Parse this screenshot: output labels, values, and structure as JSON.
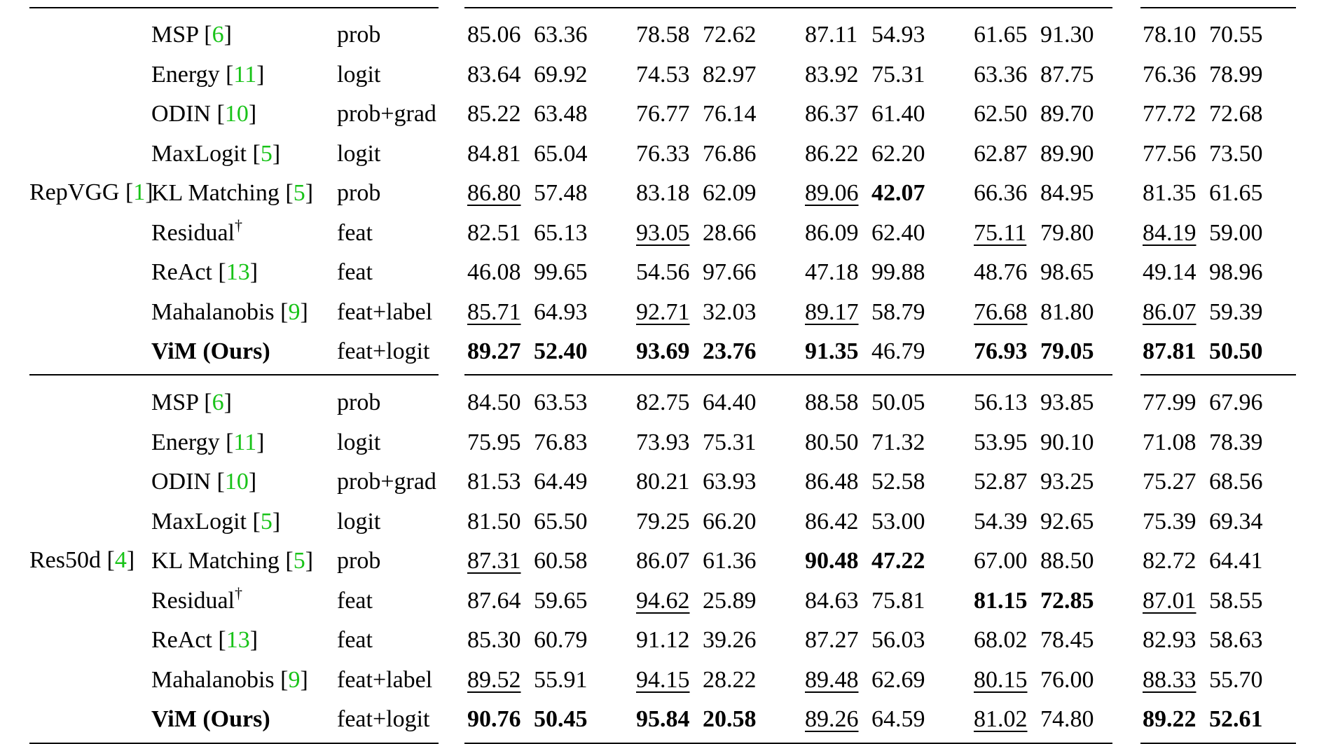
{
  "groups": [
    {
      "model": "RepVGG",
      "cite": "1",
      "rows": [
        {
          "method": "MSP",
          "cite": "6",
          "input": "prob",
          "cells": [
            [
              "85.06",
              ""
            ],
            [
              "63.36",
              ""
            ],
            [
              "78.58",
              ""
            ],
            [
              "72.62",
              ""
            ],
            [
              "87.11",
              ""
            ],
            [
              "54.93",
              ""
            ],
            [
              "61.65",
              ""
            ],
            [
              "91.30",
              ""
            ],
            [
              "78.10",
              ""
            ],
            [
              "70.55",
              ""
            ]
          ]
        },
        {
          "method": "Energy",
          "cite": "11",
          "input": "logit",
          "cells": [
            [
              "83.64",
              ""
            ],
            [
              "69.92",
              ""
            ],
            [
              "74.53",
              ""
            ],
            [
              "82.97",
              ""
            ],
            [
              "83.92",
              ""
            ],
            [
              "75.31",
              ""
            ],
            [
              "63.36",
              ""
            ],
            [
              "87.75",
              ""
            ],
            [
              "76.36",
              ""
            ],
            [
              "78.99",
              ""
            ]
          ]
        },
        {
          "method": "ODIN",
          "cite": "10",
          "input": "prob+grad",
          "cells": [
            [
              "85.22",
              ""
            ],
            [
              "63.48",
              ""
            ],
            [
              "76.77",
              ""
            ],
            [
              "76.14",
              ""
            ],
            [
              "86.37",
              ""
            ],
            [
              "61.40",
              ""
            ],
            [
              "62.50",
              ""
            ],
            [
              "89.70",
              ""
            ],
            [
              "77.72",
              ""
            ],
            [
              "72.68",
              ""
            ]
          ]
        },
        {
          "method": "MaxLogit",
          "cite": "5",
          "input": "logit",
          "cells": [
            [
              "84.81",
              ""
            ],
            [
              "65.04",
              ""
            ],
            [
              "76.33",
              ""
            ],
            [
              "76.86",
              ""
            ],
            [
              "86.22",
              ""
            ],
            [
              "62.20",
              ""
            ],
            [
              "62.87",
              ""
            ],
            [
              "89.90",
              ""
            ],
            [
              "77.56",
              ""
            ],
            [
              "73.50",
              ""
            ]
          ]
        },
        {
          "method": "KL Matching",
          "cite": "5",
          "input": "prob",
          "cells": [
            [
              "86.80",
              "u"
            ],
            [
              "57.48",
              ""
            ],
            [
              "83.18",
              ""
            ],
            [
              "62.09",
              ""
            ],
            [
              "89.06",
              "u"
            ],
            [
              "42.07",
              "b"
            ],
            [
              "66.36",
              ""
            ],
            [
              "84.95",
              ""
            ],
            [
              "81.35",
              ""
            ],
            [
              "61.65",
              ""
            ]
          ]
        },
        {
          "method": "Residual",
          "sup": "†",
          "input": "feat",
          "cells": [
            [
              "82.51",
              ""
            ],
            [
              "65.13",
              ""
            ],
            [
              "93.05",
              "u"
            ],
            [
              "28.66",
              ""
            ],
            [
              "86.09",
              ""
            ],
            [
              "62.40",
              ""
            ],
            [
              "75.11",
              "u"
            ],
            [
              "79.80",
              ""
            ],
            [
              "84.19",
              "u"
            ],
            [
              "59.00",
              ""
            ]
          ]
        },
        {
          "method": "ReAct",
          "cite": "13",
          "input": "feat",
          "cells": [
            [
              "46.08",
              ""
            ],
            [
              "99.65",
              ""
            ],
            [
              "54.56",
              ""
            ],
            [
              "97.66",
              ""
            ],
            [
              "47.18",
              ""
            ],
            [
              "99.88",
              ""
            ],
            [
              "48.76",
              ""
            ],
            [
              "98.65",
              ""
            ],
            [
              "49.14",
              ""
            ],
            [
              "98.96",
              ""
            ]
          ]
        },
        {
          "method": "Mahalanobis",
          "cite": "9",
          "input": "feat+label",
          "cells": [
            [
              "85.71",
              "u"
            ],
            [
              "64.93",
              ""
            ],
            [
              "92.71",
              "u"
            ],
            [
              "32.03",
              ""
            ],
            [
              "89.17",
              "u"
            ],
            [
              "58.79",
              ""
            ],
            [
              "76.68",
              "u"
            ],
            [
              "81.80",
              ""
            ],
            [
              "86.07",
              "u"
            ],
            [
              "59.39",
              ""
            ]
          ]
        },
        {
          "method": "ViM (Ours)",
          "bold": true,
          "input": "feat+logit",
          "cells": [
            [
              "89.27",
              "b"
            ],
            [
              "52.40",
              "b"
            ],
            [
              "93.69",
              "b"
            ],
            [
              "23.76",
              "b"
            ],
            [
              "91.35",
              "b"
            ],
            [
              "46.79",
              ""
            ],
            [
              "76.93",
              "b"
            ],
            [
              "79.05",
              "b"
            ],
            [
              "87.81",
              "b"
            ],
            [
              "50.50",
              "b"
            ]
          ]
        }
      ]
    },
    {
      "model": "Res50d",
      "cite": "4",
      "rows": [
        {
          "method": "MSP",
          "cite": "6",
          "input": "prob",
          "cells": [
            [
              "84.50",
              ""
            ],
            [
              "63.53",
              ""
            ],
            [
              "82.75",
              ""
            ],
            [
              "64.40",
              ""
            ],
            [
              "88.58",
              ""
            ],
            [
              "50.05",
              ""
            ],
            [
              "56.13",
              ""
            ],
            [
              "93.85",
              ""
            ],
            [
              "77.99",
              ""
            ],
            [
              "67.96",
              ""
            ]
          ]
        },
        {
          "method": "Energy",
          "cite": "11",
          "input": "logit",
          "cells": [
            [
              "75.95",
              ""
            ],
            [
              "76.83",
              ""
            ],
            [
              "73.93",
              ""
            ],
            [
              "75.31",
              ""
            ],
            [
              "80.50",
              ""
            ],
            [
              "71.32",
              ""
            ],
            [
              "53.95",
              ""
            ],
            [
              "90.10",
              ""
            ],
            [
              "71.08",
              ""
            ],
            [
              "78.39",
              ""
            ]
          ]
        },
        {
          "method": "ODIN",
          "cite": "10",
          "input": "prob+grad",
          "cells": [
            [
              "81.53",
              ""
            ],
            [
              "64.49",
              ""
            ],
            [
              "80.21",
              ""
            ],
            [
              "63.93",
              ""
            ],
            [
              "86.48",
              ""
            ],
            [
              "52.58",
              ""
            ],
            [
              "52.87",
              ""
            ],
            [
              "93.25",
              ""
            ],
            [
              "75.27",
              ""
            ],
            [
              "68.56",
              ""
            ]
          ]
        },
        {
          "method": "MaxLogit",
          "cite": "5",
          "input": "logit",
          "cells": [
            [
              "81.50",
              ""
            ],
            [
              "65.50",
              ""
            ],
            [
              "79.25",
              ""
            ],
            [
              "66.20",
              ""
            ],
            [
              "86.42",
              ""
            ],
            [
              "53.00",
              ""
            ],
            [
              "54.39",
              ""
            ],
            [
              "92.65",
              ""
            ],
            [
              "75.39",
              ""
            ],
            [
              "69.34",
              ""
            ]
          ]
        },
        {
          "method": "KL Matching",
          "cite": "5",
          "input": "prob",
          "cells": [
            [
              "87.31",
              "u"
            ],
            [
              "60.58",
              ""
            ],
            [
              "86.07",
              ""
            ],
            [
              "61.36",
              ""
            ],
            [
              "90.48",
              "b"
            ],
            [
              "47.22",
              "b"
            ],
            [
              "67.00",
              ""
            ],
            [
              "88.50",
              ""
            ],
            [
              "82.72",
              ""
            ],
            [
              "64.41",
              ""
            ]
          ]
        },
        {
          "method": "Residual",
          "sup": "†",
          "input": "feat",
          "cells": [
            [
              "87.64",
              ""
            ],
            [
              "59.65",
              ""
            ],
            [
              "94.62",
              "u"
            ],
            [
              "25.89",
              ""
            ],
            [
              "84.63",
              ""
            ],
            [
              "75.81",
              ""
            ],
            [
              "81.15",
              "b"
            ],
            [
              "72.85",
              "b"
            ],
            [
              "87.01",
              "u"
            ],
            [
              "58.55",
              ""
            ]
          ]
        },
        {
          "method": "ReAct",
          "cite": "13",
          "input": "feat",
          "cells": [
            [
              "85.30",
              ""
            ],
            [
              "60.79",
              ""
            ],
            [
              "91.12",
              ""
            ],
            [
              "39.26",
              ""
            ],
            [
              "87.27",
              ""
            ],
            [
              "56.03",
              ""
            ],
            [
              "68.02",
              ""
            ],
            [
              "78.45",
              ""
            ],
            [
              "82.93",
              ""
            ],
            [
              "58.63",
              ""
            ]
          ]
        },
        {
          "method": "Mahalanobis",
          "cite": "9",
          "input": "feat+label",
          "cells": [
            [
              "89.52",
              "u"
            ],
            [
              "55.91",
              ""
            ],
            [
              "94.15",
              "u"
            ],
            [
              "28.22",
              ""
            ],
            [
              "89.48",
              "u"
            ],
            [
              "62.69",
              ""
            ],
            [
              "80.15",
              "u"
            ],
            [
              "76.00",
              ""
            ],
            [
              "88.33",
              "u"
            ],
            [
              "55.70",
              ""
            ]
          ]
        },
        {
          "method": "ViM (Ours)",
          "bold": true,
          "input": "feat+logit",
          "cells": [
            [
              "90.76",
              "b"
            ],
            [
              "50.45",
              "b"
            ],
            [
              "95.84",
              "b"
            ],
            [
              "20.58",
              "b"
            ],
            [
              "89.26",
              "u"
            ],
            [
              "64.59",
              ""
            ],
            [
              "81.02",
              "u"
            ],
            [
              "74.80",
              ""
            ],
            [
              "89.22",
              "b"
            ],
            [
              "52.61",
              "b"
            ]
          ]
        }
      ]
    }
  ]
}
